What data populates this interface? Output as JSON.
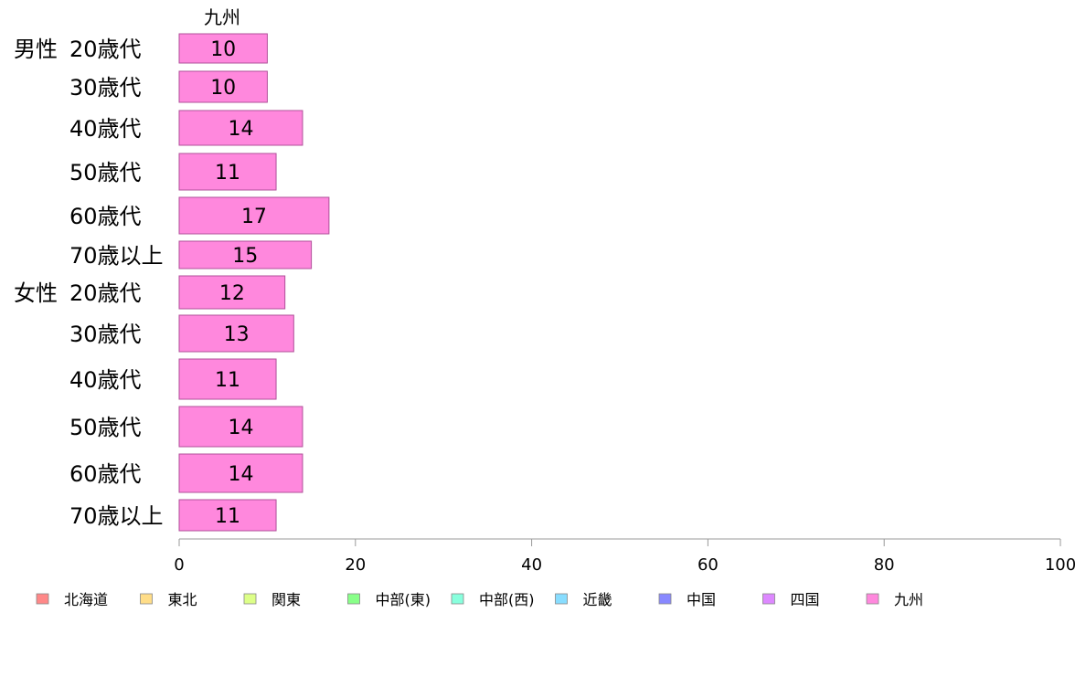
{
  "chart_data": {
    "type": "bar",
    "orientation": "horizontal",
    "title": "九州",
    "xlim": [
      0,
      100
    ],
    "x_ticks": [
      "0",
      "20",
      "40",
      "60",
      "80",
      "100"
    ],
    "groups": [
      "男性",
      "女性"
    ],
    "categories": [
      {
        "group": "男性",
        "label": "20歳代"
      },
      {
        "group": "",
        "label": "30歳代"
      },
      {
        "group": "",
        "label": "40歳代"
      },
      {
        "group": "",
        "label": "50歳代"
      },
      {
        "group": "",
        "label": "60歳代"
      },
      {
        "group": "",
        "label": "70歳以上"
      },
      {
        "group": "女性",
        "label": "20歳代"
      },
      {
        "group": "",
        "label": "30歳代"
      },
      {
        "group": "",
        "label": "40歳代"
      },
      {
        "group": "",
        "label": "50歳代"
      },
      {
        "group": "",
        "label": "60歳代"
      },
      {
        "group": "",
        "label": "70歳以上"
      }
    ],
    "series": [
      {
        "name": "九州",
        "values": [
          10,
          10,
          14,
          11,
          17,
          15,
          12,
          13,
          11,
          14,
          14,
          11
        ]
      }
    ],
    "bar_color": "#ff88dd",
    "bar_stroke": "#b0509a",
    "axis_color": "#999999",
    "legend_position": "bottom",
    "legend": [
      {
        "label": "北海道",
        "color": "#ff8888"
      },
      {
        "label": "東北",
        "color": "#ffdd88"
      },
      {
        "label": "関東",
        "color": "#ddff88"
      },
      {
        "label": "中部(東)",
        "color": "#88ff88"
      },
      {
        "label": "中部(西)",
        "color": "#88ffdd"
      },
      {
        "label": "近畿",
        "color": "#88ddff"
      },
      {
        "label": "中国",
        "color": "#8888ff"
      },
      {
        "label": "四国",
        "color": "#dd88ff"
      },
      {
        "label": "九州",
        "color": "#ff88dd"
      }
    ]
  }
}
